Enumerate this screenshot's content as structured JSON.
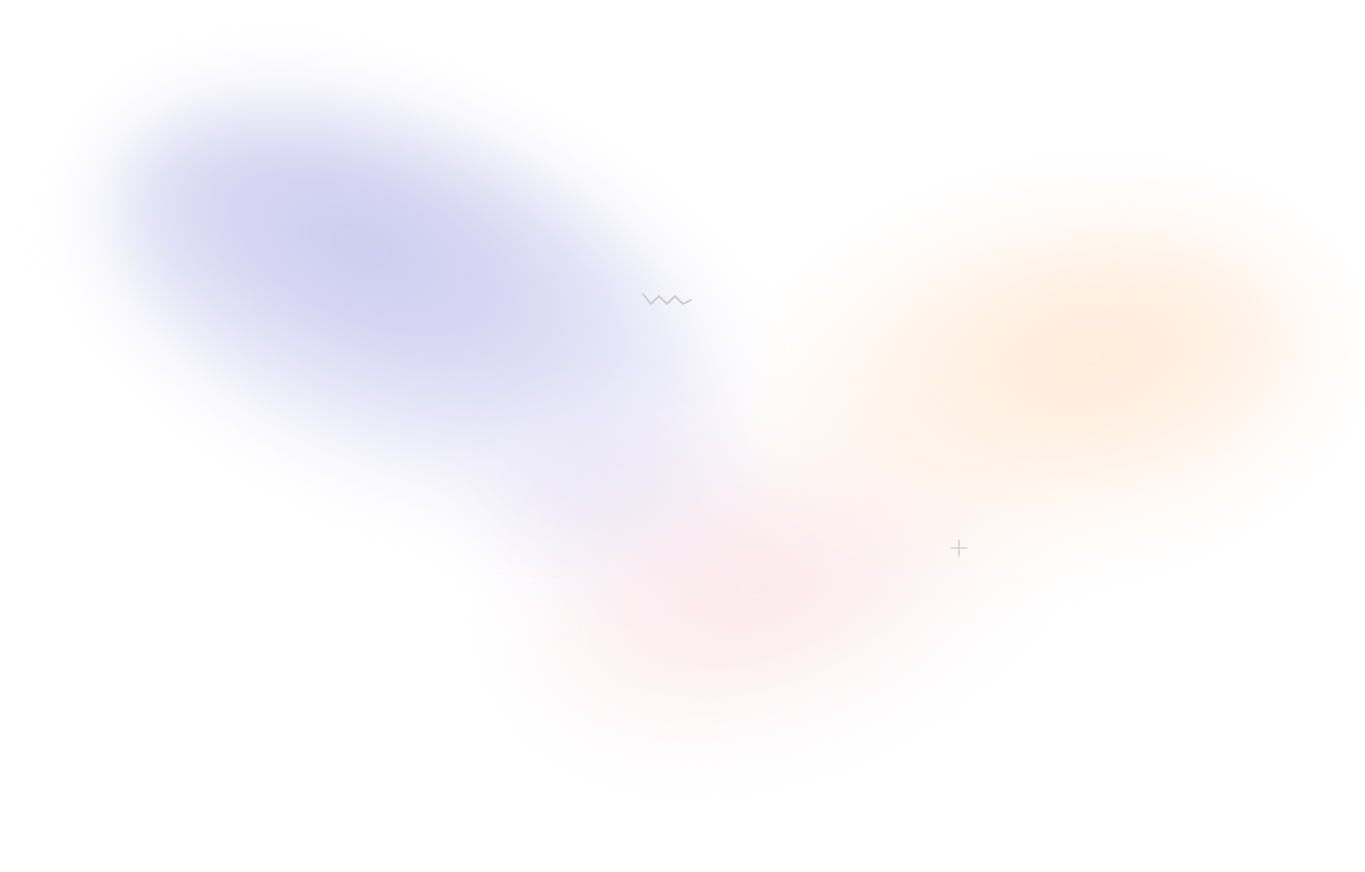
{
  "page": {
    "background_color": "#ffffff"
  },
  "background": {
    "blobs": [
      {
        "name": "lavender-glow",
        "color": "#c6c7ee"
      },
      {
        "name": "peach-glow",
        "color": "#ffe8d4"
      },
      {
        "name": "pink-glow",
        "color": "#fae2e8"
      },
      {
        "name": "violet-glow",
        "color": "#e2def4"
      }
    ]
  },
  "decorations": {
    "zigzag_icon": {
      "icon": "zigzag-icon",
      "color": "#c9c9c9"
    },
    "plus_icon": {
      "icon": "plus-icon",
      "color": "#d2d2d2"
    }
  }
}
